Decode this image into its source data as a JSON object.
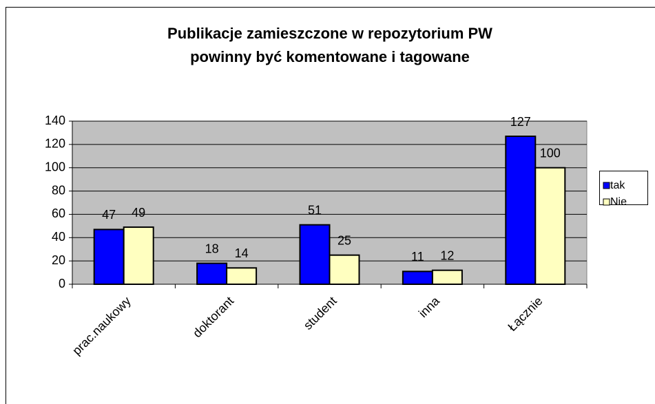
{
  "chart_data": {
    "type": "bar",
    "title": [
      "Publikacje zamieszczone w repozytorium PW",
      "powinny być komentowane i tagowane"
    ],
    "categories": [
      "prac.naukowy",
      "doktorant",
      "student",
      "inna",
      "Łącznie"
    ],
    "series": [
      {
        "name": "tak",
        "color": "#0000ff",
        "values": [
          47,
          18,
          51,
          11,
          127
        ]
      },
      {
        "name": "Nie",
        "color": "#ffffc0",
        "values": [
          49,
          14,
          25,
          12,
          100
        ]
      }
    ],
    "ylim": [
      0,
      140
    ],
    "yticks": [
      0,
      20,
      40,
      60,
      80,
      100,
      120,
      140
    ],
    "grid": true,
    "legend": "right"
  }
}
